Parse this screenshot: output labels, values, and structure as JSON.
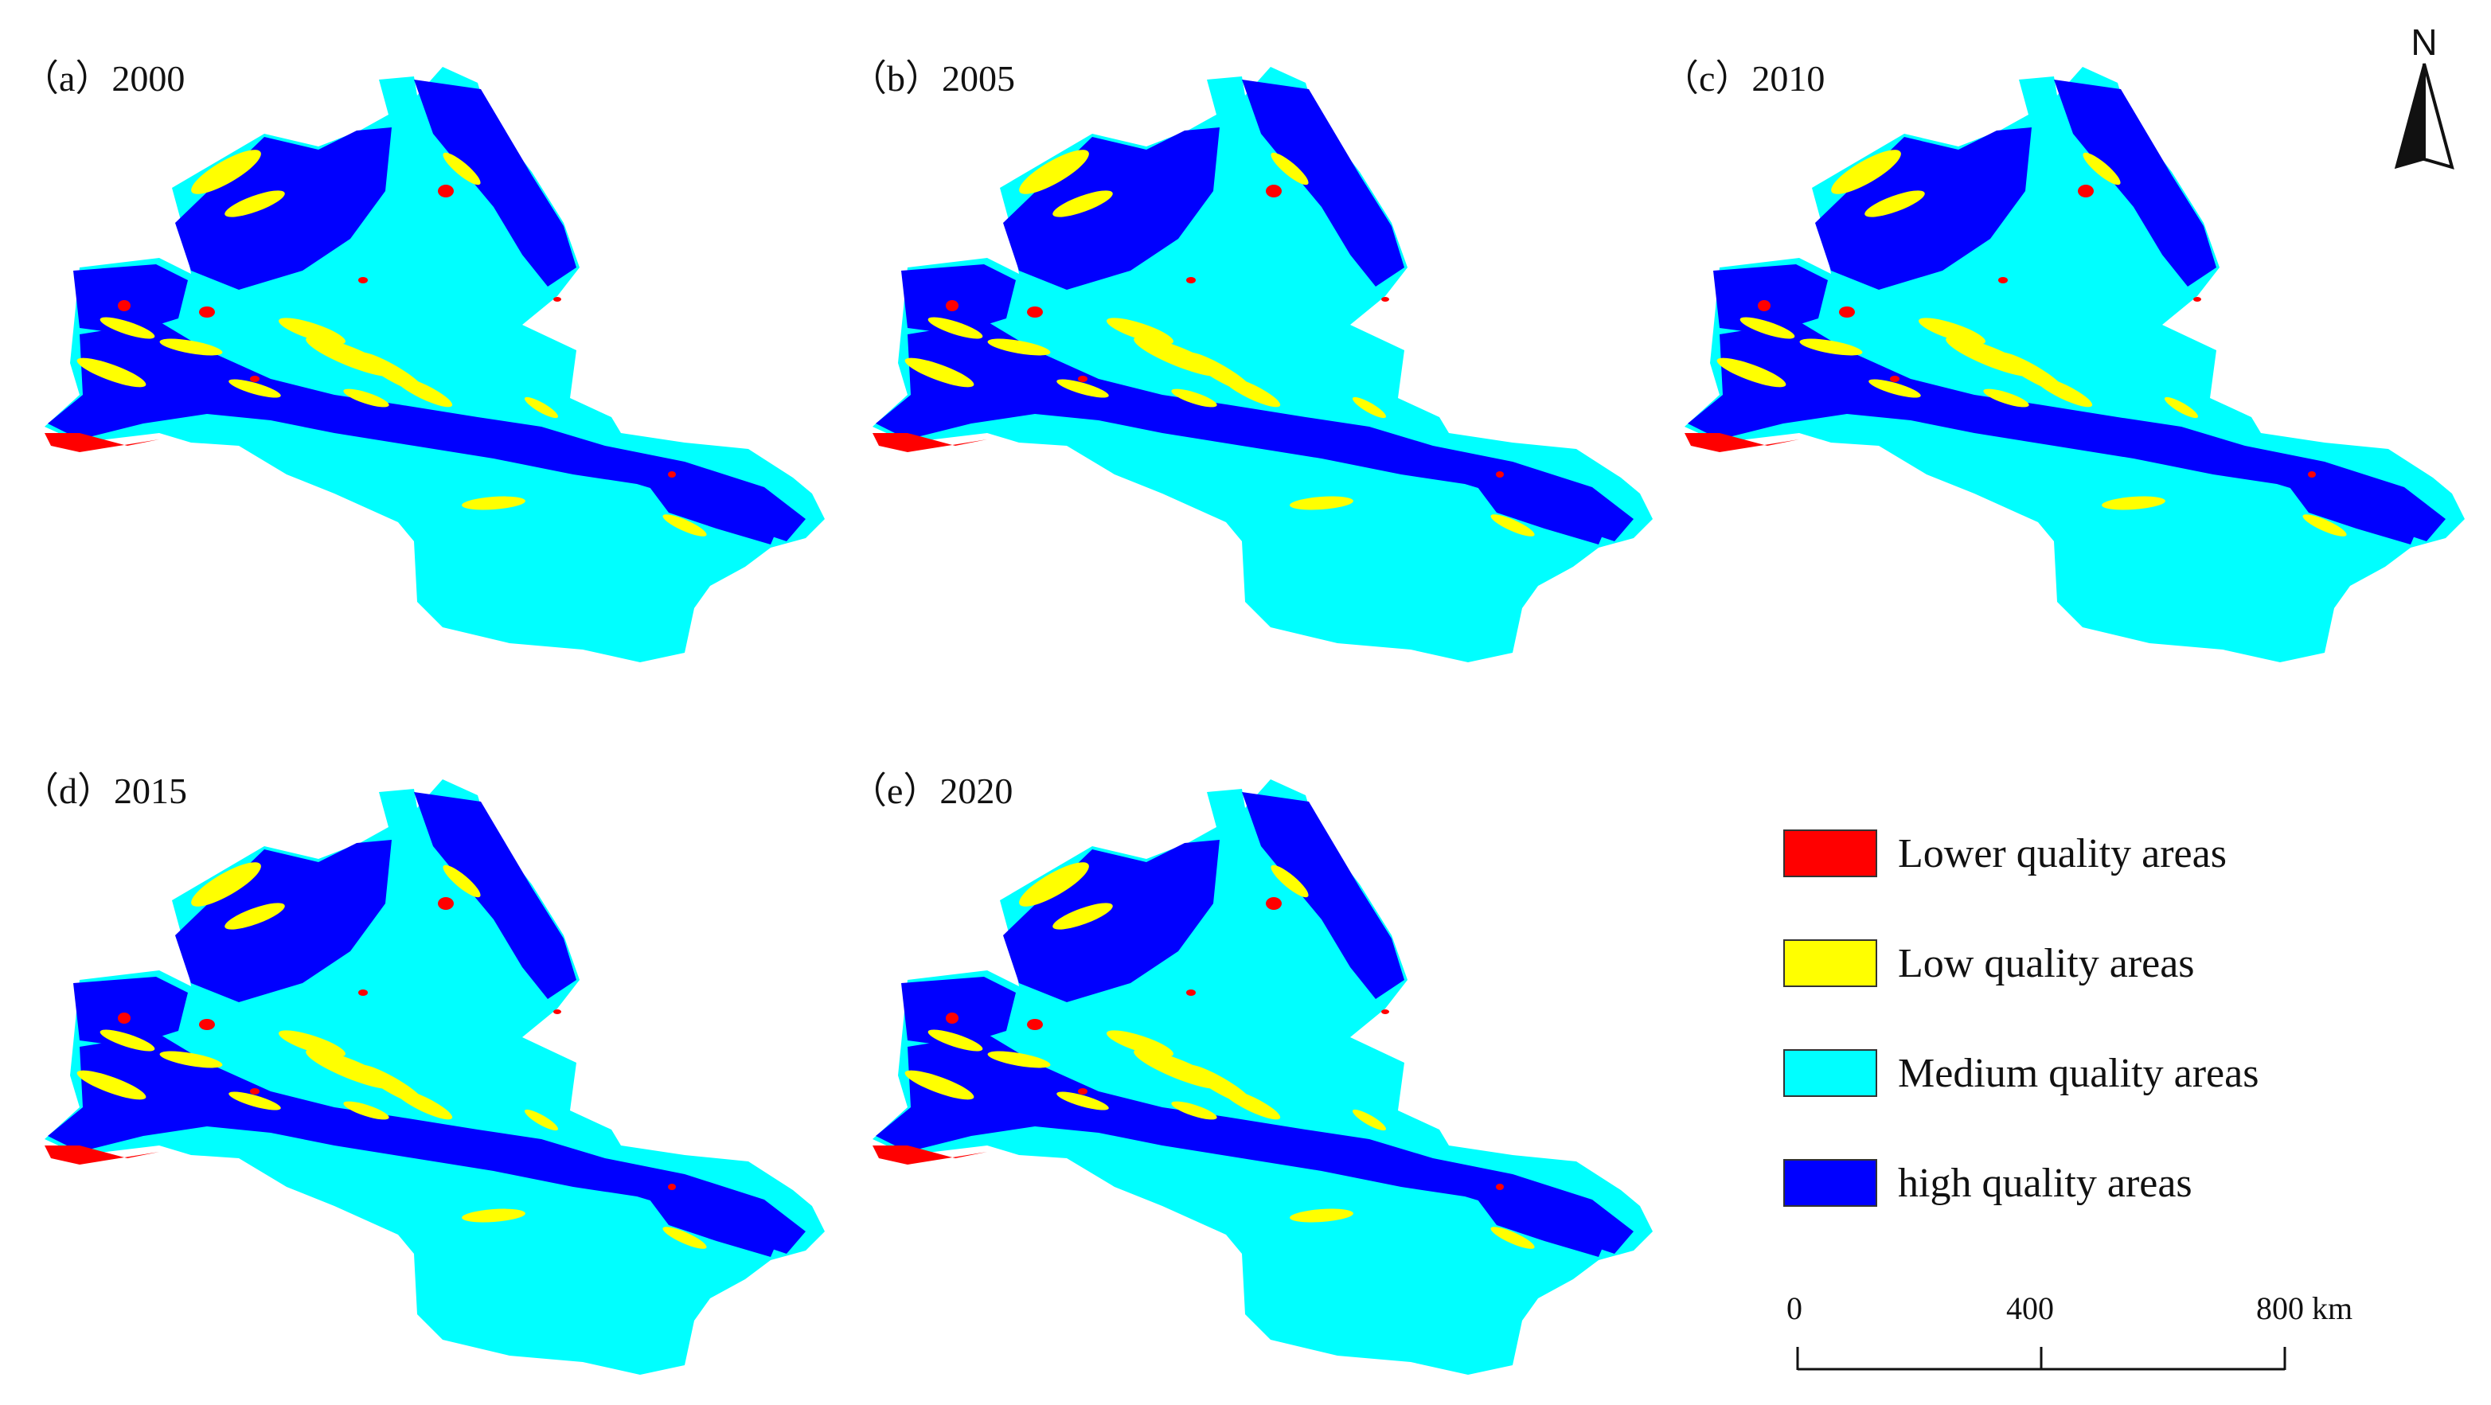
{
  "panels": [
    {
      "label": "（a）2000"
    },
    {
      "label": "（b）2005"
    },
    {
      "label": "（c）2010"
    },
    {
      "label": "（d）2015"
    },
    {
      "label": "（e）2020"
    }
  ],
  "north_arrow": {
    "letter": "N"
  },
  "legend": {
    "items": [
      {
        "label": "Lower quality areas",
        "color": "#ff0000"
      },
      {
        "label": "Low quality areas",
        "color": "#ffff00"
      },
      {
        "label": "Medium quality areas",
        "color": "#00ffff"
      },
      {
        "label": "high quality areas",
        "color": "#0000ff"
      }
    ]
  },
  "scale_bar": {
    "ticks": [
      "0",
      "400",
      "800 km"
    ]
  },
  "colors": {
    "lower": "#ff0000",
    "low": "#ffff00",
    "medium": "#00ffff",
    "high": "#0000ff"
  }
}
